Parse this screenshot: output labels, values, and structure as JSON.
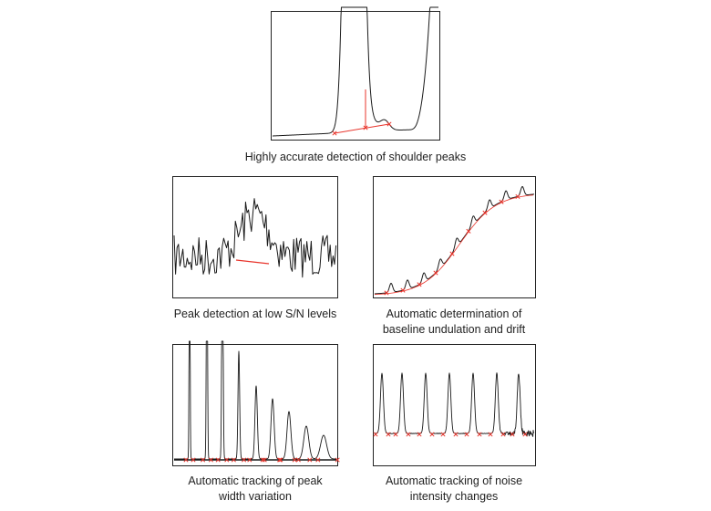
{
  "colors": {
    "trace": "#1a1a1a",
    "frame": "#222222",
    "marker": "#e8342b",
    "background": "#ffffff"
  },
  "panels": [
    {
      "id": "shoulder",
      "caption": [
        "Highly accurate detection of shoulder peaks"
      ]
    },
    {
      "id": "low-sn",
      "caption": [
        "Peak detection at low S/N levels"
      ]
    },
    {
      "id": "baseline",
      "caption": [
        "Automatic determination of",
        "baseline undulation and drift"
      ]
    },
    {
      "id": "width",
      "caption": [
        "Automatic tracking of peak",
        "width variation"
      ]
    },
    {
      "id": "noise",
      "caption": [
        "Automatic tracking of noise",
        "intensity changes"
      ]
    }
  ]
}
